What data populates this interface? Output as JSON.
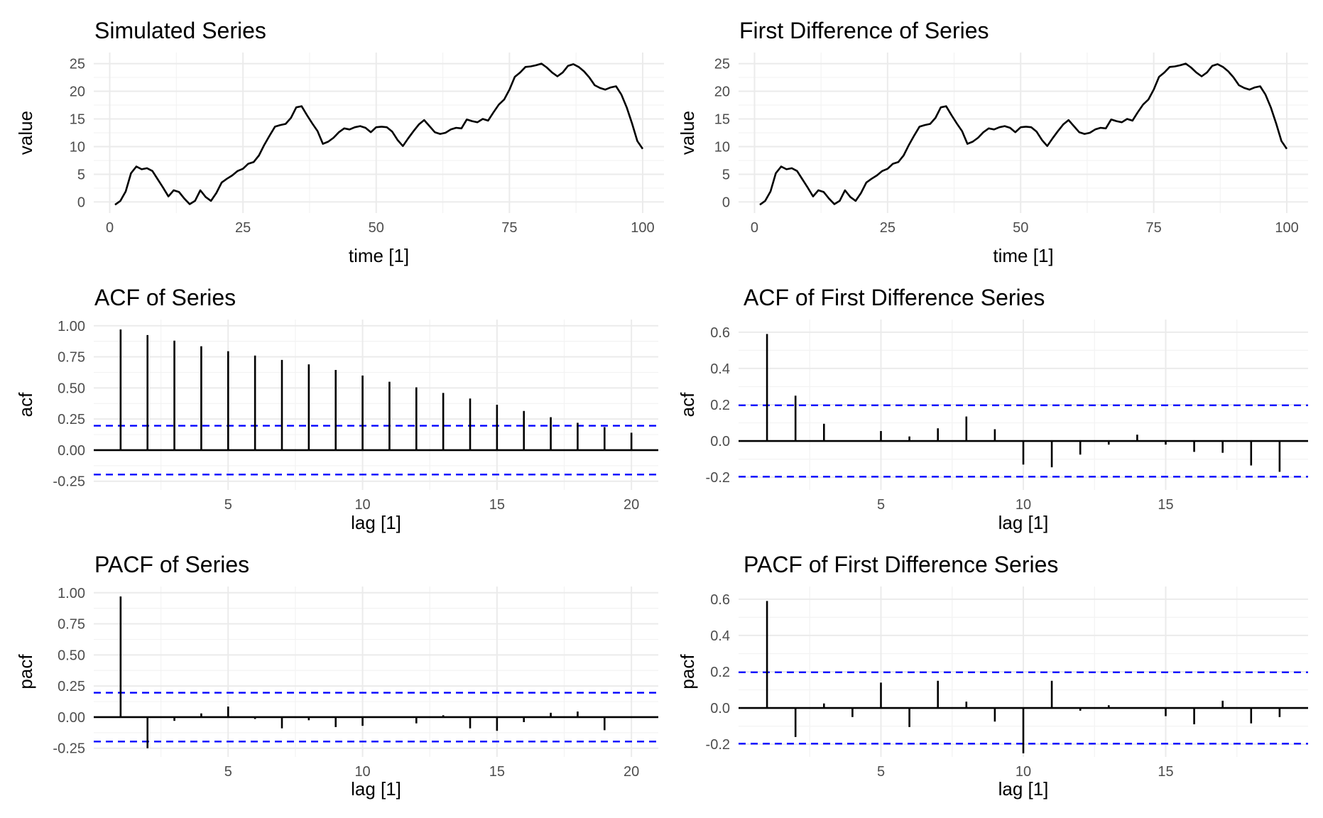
{
  "chart_data": [
    {
      "id": "series",
      "type": "line",
      "title": "Simulated Series",
      "xlabel": "time [1]",
      "ylabel": "value",
      "xlim": [
        -3,
        104
      ],
      "ylim": [
        -2,
        27
      ],
      "xticks": [
        0,
        25,
        50,
        75,
        100
      ],
      "yticks": [
        0,
        5,
        10,
        15,
        20,
        25
      ],
      "grid": true,
      "x": [
        1,
        2,
        3,
        4,
        5,
        6,
        7,
        8,
        9,
        10,
        11,
        12,
        13,
        14,
        15,
        16,
        17,
        18,
        19,
        20,
        21,
        22,
        23,
        24,
        25,
        26,
        27,
        28,
        29,
        30,
        31,
        32,
        33,
        34,
        35,
        36,
        37,
        38,
        39,
        40,
        41,
        42,
        43,
        44,
        45,
        46,
        47,
        48,
        49,
        50,
        51,
        52,
        53,
        54,
        55,
        56,
        57,
        58,
        59,
        60,
        61,
        62,
        63,
        64,
        65,
        66,
        67,
        68,
        69,
        70,
        71,
        72,
        73,
        74,
        75,
        76,
        77,
        78,
        79,
        80,
        81,
        82,
        83,
        84,
        85,
        86,
        87,
        88,
        89,
        90,
        91,
        92,
        93,
        94,
        95,
        96,
        97,
        98,
        99,
        100
      ],
      "y": [
        -0.5,
        0.2,
        1.9,
        5.2,
        6.4,
        5.9,
        6.1,
        5.6,
        4.1,
        2.6,
        1.0,
        2.1,
        1.8,
        0.6,
        -0.4,
        0.2,
        2.1,
        0.9,
        0.2,
        1.6,
        3.5,
        4.2,
        4.8,
        5.6,
        6.0,
        6.9,
        7.2,
        8.4,
        10.3,
        12.0,
        13.6,
        13.9,
        14.1,
        15.2,
        17.1,
        17.3,
        15.7,
        14.2,
        12.8,
        10.5,
        10.9,
        11.6,
        12.6,
        13.3,
        13.1,
        13.5,
        13.7,
        13.4,
        12.6,
        13.5,
        13.6,
        13.5,
        12.7,
        11.2,
        10.1,
        11.5,
        12.8,
        14.0,
        14.8,
        13.7,
        12.6,
        12.3,
        12.5,
        13.1,
        13.4,
        13.3,
        14.9,
        14.6,
        14.4,
        15.0,
        14.7,
        16.2,
        17.6,
        18.5,
        20.3,
        22.6,
        23.4,
        24.4,
        24.5,
        24.7,
        25.0,
        24.3,
        23.4,
        22.7,
        23.4,
        24.6,
        24.9,
        24.4,
        23.6,
        22.5,
        21.1,
        20.6,
        20.3,
        20.7,
        20.9,
        19.4,
        17.1,
        14.2,
        11.0,
        9.6
      ]
    },
    {
      "id": "diff",
      "type": "line",
      "title": "First Difference of Series",
      "xlabel": "time [1]",
      "ylabel": "value",
      "xlim": [
        -3,
        104
      ],
      "ylim": [
        -2,
        27
      ],
      "xticks": [
        0,
        25,
        50,
        75,
        100
      ],
      "yticks": [
        0,
        5,
        10,
        15,
        20,
        25
      ],
      "grid": true,
      "x": [
        1,
        2,
        3,
        4,
        5,
        6,
        7,
        8,
        9,
        10,
        11,
        12,
        13,
        14,
        15,
        16,
        17,
        18,
        19,
        20,
        21,
        22,
        23,
        24,
        25,
        26,
        27,
        28,
        29,
        30,
        31,
        32,
        33,
        34,
        35,
        36,
        37,
        38,
        39,
        40,
        41,
        42,
        43,
        44,
        45,
        46,
        47,
        48,
        49,
        50,
        51,
        52,
        53,
        54,
        55,
        56,
        57,
        58,
        59,
        60,
        61,
        62,
        63,
        64,
        65,
        66,
        67,
        68,
        69,
        70,
        71,
        72,
        73,
        74,
        75,
        76,
        77,
        78,
        79,
        80,
        81,
        82,
        83,
        84,
        85,
        86,
        87,
        88,
        89,
        90,
        91,
        92,
        93,
        94,
        95,
        96,
        97,
        98,
        99,
        100
      ],
      "y": [
        -0.5,
        0.2,
        1.9,
        5.2,
        6.4,
        5.9,
        6.1,
        5.6,
        4.1,
        2.6,
        1.0,
        2.1,
        1.8,
        0.6,
        -0.4,
        0.2,
        2.1,
        0.9,
        0.2,
        1.6,
        3.5,
        4.2,
        4.8,
        5.6,
        6.0,
        6.9,
        7.2,
        8.4,
        10.3,
        12.0,
        13.6,
        13.9,
        14.1,
        15.2,
        17.1,
        17.3,
        15.7,
        14.2,
        12.8,
        10.5,
        10.9,
        11.6,
        12.6,
        13.3,
        13.1,
        13.5,
        13.7,
        13.4,
        12.6,
        13.5,
        13.6,
        13.5,
        12.7,
        11.2,
        10.1,
        11.5,
        12.8,
        14.0,
        14.8,
        13.7,
        12.6,
        12.3,
        12.5,
        13.1,
        13.4,
        13.3,
        14.9,
        14.6,
        14.4,
        15.0,
        14.7,
        16.2,
        17.6,
        18.5,
        20.3,
        22.6,
        23.4,
        24.4,
        24.5,
        24.7,
        25.0,
        24.3,
        23.4,
        22.7,
        23.4,
        24.6,
        24.9,
        24.4,
        23.6,
        22.5,
        21.1,
        20.6,
        20.3,
        20.7,
        20.9,
        19.4,
        17.1,
        14.2,
        11.0,
        9.6
      ]
    },
    {
      "id": "acf",
      "type": "bar",
      "title": "ACF of Series",
      "xlabel": "lag [1]",
      "ylabel": "acf",
      "xlim": [
        0,
        21
      ],
      "ylim": [
        -0.32,
        1.05
      ],
      "xticks": [
        5,
        10,
        15,
        20
      ],
      "yticks": [
        "1.00",
        "0.75",
        "0.50",
        "0.25",
        "0.00",
        "-0.25"
      ],
      "confidence_bound": 0.196,
      "grid": true,
      "x": [
        1,
        2,
        3,
        4,
        5,
        6,
        7,
        8,
        9,
        10,
        11,
        12,
        13,
        14,
        15,
        16,
        17,
        18,
        19,
        20
      ],
      "values": [
        0.97,
        0.925,
        0.88,
        0.835,
        0.795,
        0.76,
        0.725,
        0.69,
        0.645,
        0.6,
        0.55,
        0.505,
        0.46,
        0.415,
        0.365,
        0.315,
        0.265,
        0.22,
        0.185,
        0.14
      ]
    },
    {
      "id": "acf_diff",
      "type": "bar",
      "title": "ACF of First Difference Series",
      "xlabel": "lag [1]",
      "ylabel": "acf",
      "xlim": [
        0,
        20
      ],
      "ylim": [
        -0.27,
        0.67
      ],
      "xticks": [
        5,
        10,
        15
      ],
      "yticks": [
        "0.6",
        "0.4",
        "0.2",
        "0.0",
        "-0.2"
      ],
      "confidence_bound": 0.197,
      "grid": true,
      "x": [
        1,
        2,
        3,
        4,
        5,
        6,
        7,
        8,
        9,
        10,
        11,
        12,
        13,
        14,
        15,
        16,
        17,
        18,
        19
      ],
      "values": [
        0.59,
        0.25,
        0.095,
        0.0,
        0.055,
        0.025,
        0.07,
        0.135,
        0.065,
        -0.13,
        -0.145,
        -0.075,
        -0.02,
        0.035,
        -0.02,
        -0.06,
        -0.065,
        -0.135,
        -0.17
      ]
    },
    {
      "id": "pacf",
      "type": "bar",
      "title": "PACF of Series",
      "xlabel": "lag [1]",
      "ylabel": "pacf",
      "xlim": [
        0,
        21
      ],
      "ylim": [
        -0.32,
        1.05
      ],
      "xticks": [
        5,
        10,
        15,
        20
      ],
      "yticks": [
        "1.00",
        "0.75",
        "0.50",
        "0.25",
        "0.00",
        "-0.25"
      ],
      "confidence_bound": 0.196,
      "grid": true,
      "x": [
        1,
        2,
        3,
        4,
        5,
        6,
        7,
        8,
        9,
        10,
        11,
        12,
        13,
        14,
        15,
        16,
        17,
        18,
        19,
        20
      ],
      "values": [
        0.97,
        -0.25,
        -0.03,
        0.03,
        0.085,
        -0.015,
        -0.09,
        -0.025,
        -0.08,
        -0.07,
        0.0,
        -0.05,
        0.015,
        -0.09,
        -0.11,
        -0.04,
        0.035,
        0.045,
        -0.105,
        0.0
      ]
    },
    {
      "id": "pacf_diff",
      "type": "bar",
      "title": "PACF of First Difference Series",
      "xlabel": "lag [1]",
      "ylabel": "pacf",
      "xlim": [
        0,
        20
      ],
      "ylim": [
        -0.27,
        0.67
      ],
      "xticks": [
        5,
        10,
        15
      ],
      "yticks": [
        "0.6",
        "0.4",
        "0.2",
        "0.0",
        "-0.2"
      ],
      "confidence_bound": 0.197,
      "grid": true,
      "x": [
        1,
        2,
        3,
        4,
        5,
        6,
        7,
        8,
        9,
        10,
        11,
        12,
        13,
        14,
        15,
        16,
        17,
        18,
        19
      ],
      "values": [
        0.59,
        -0.16,
        0.025,
        -0.05,
        0.14,
        -0.105,
        0.15,
        0.035,
        -0.075,
        -0.25,
        0.15,
        -0.015,
        0.015,
        0.0,
        -0.045,
        -0.09,
        0.04,
        -0.085,
        -0.05
      ]
    }
  ],
  "colors": {
    "line": "#000000",
    "bar": "#000000",
    "confidence": "#0000ff",
    "grid": "#ebebeb",
    "tick_text": "#4d4d4d"
  }
}
